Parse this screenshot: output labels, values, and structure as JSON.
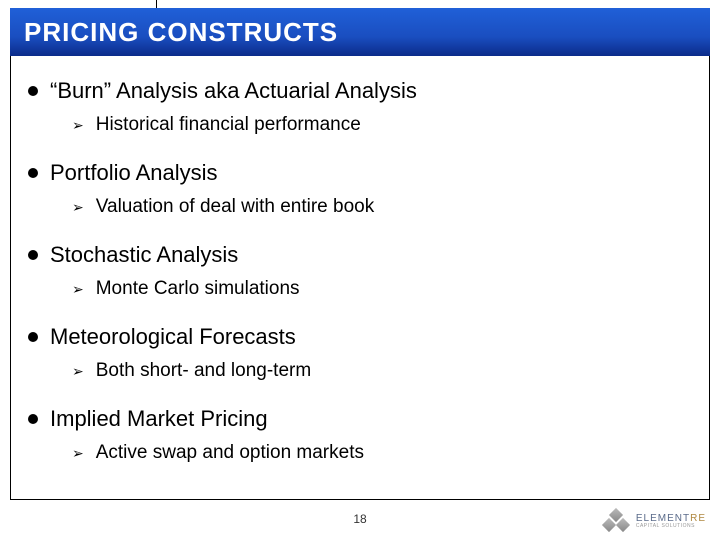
{
  "title": "PRICING CONSTRUCTS",
  "items": [
    {
      "label": "“Burn” Analysis aka Actuarial Analysis",
      "sub": "Historical financial performance"
    },
    {
      "label": "Portfolio Analysis",
      "sub": "Valuation of deal with entire book"
    },
    {
      "label": "Stochastic Analysis",
      "sub": "Monte Carlo simulations"
    },
    {
      "label": "Meteorological Forecasts",
      "sub": "Both short- and long-term"
    },
    {
      "label": "Implied Market Pricing",
      "sub": "Active swap and option markets"
    }
  ],
  "page_number": "18",
  "logo": {
    "brand_main": "ELEMENT",
    "brand_suffix": "RE",
    "tagline": "CAPITAL SOLUTIONS"
  },
  "colors": {
    "title_bg_top": "#2060d8",
    "title_bg_bottom": "#0b2b8a",
    "title_text": "#ffffff",
    "body_text": "#000000",
    "logo_main": "#5a6b8a",
    "logo_suffix": "#b08840"
  }
}
